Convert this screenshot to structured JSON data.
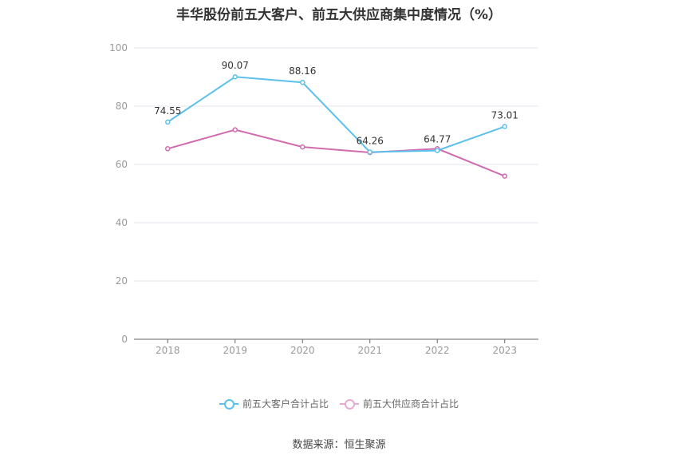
{
  "chart_data": {
    "type": "line",
    "title": "丰华股份前五大客户、前五大供应商集中度情况（%）",
    "categories": [
      "2018",
      "2019",
      "2020",
      "2021",
      "2022",
      "2023"
    ],
    "ylim": [
      0,
      100
    ],
    "yticks": [
      0,
      20,
      40,
      60,
      80,
      100
    ],
    "grid": true,
    "legend_position": "bottom",
    "series": [
      {
        "name": "前五大客户合计占比",
        "color": "#5BC0EB",
        "values": [
          74.55,
          90.07,
          88.16,
          64.26,
          64.77,
          73.01
        ],
        "labels": [
          "74.55",
          "90.07",
          "88.16",
          "64.26",
          "64.77",
          "73.01"
        ]
      },
      {
        "name": "前五大供应商合计占比",
        "color": "#D16BB0",
        "values": [
          65.4,
          71.9,
          66.0,
          64.1,
          65.4,
          56.0
        ]
      }
    ]
  },
  "source": "数据来源：恒生聚源"
}
